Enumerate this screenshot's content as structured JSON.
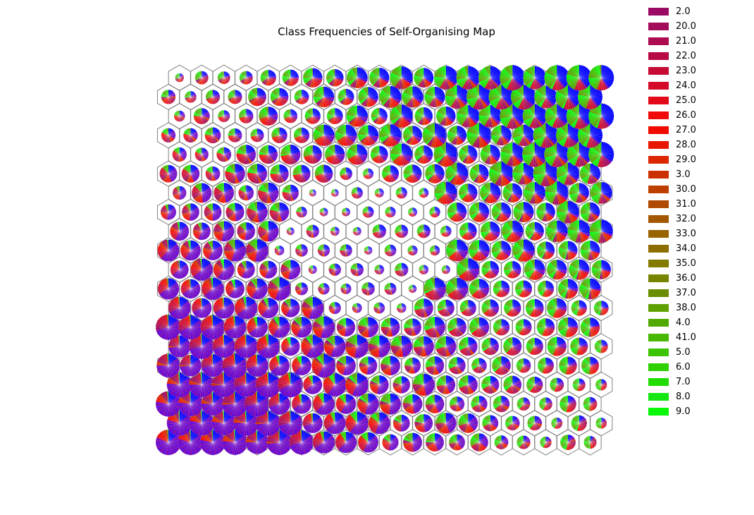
{
  "title": "Class Frequencies of Self-Organising Map",
  "chart_data": {
    "type": "pie-hexgrid",
    "title": "Class Frequencies of Self-Organising Map",
    "grid": "off",
    "legend_placement": "upper-right",
    "map_shape": {
      "rows": 20,
      "cols": 20,
      "cell_shape": "hexagon"
    },
    "classes": [
      {
        "label": "2.0",
        "color": "#9a0a64"
      },
      {
        "label": "20.0",
        "color": "#a30a5a"
      },
      {
        "label": "21.0",
        "color": "#ad0a50"
      },
      {
        "label": "22.0",
        "color": "#b80a45"
      },
      {
        "label": "23.0",
        "color": "#c60a36"
      },
      {
        "label": "24.0",
        "color": "#d40a28"
      },
      {
        "label": "25.0",
        "color": "#e20a18"
      },
      {
        "label": "26.0",
        "color": "#f00a0a"
      },
      {
        "label": "27.0",
        "color": "#f00a00"
      },
      {
        "label": "28.0",
        "color": "#e81800"
      },
      {
        "label": "29.0",
        "color": "#dc2600"
      },
      {
        "label": "3.0",
        "color": "#cc3000"
      },
      {
        "label": "30.0",
        "color": "#be4000"
      },
      {
        "label": "31.0",
        "color": "#b04a00"
      },
      {
        "label": "32.0",
        "color": "#a35800"
      },
      {
        "label": "33.0",
        "color": "#986400"
      },
      {
        "label": "34.0",
        "color": "#8c6e00"
      },
      {
        "label": "35.0",
        "color": "#837a00"
      },
      {
        "label": "36.0",
        "color": "#768400"
      },
      {
        "label": "37.0",
        "color": "#6a8e00"
      },
      {
        "label": "38.0",
        "color": "#5ea000"
      },
      {
        "label": "4.0",
        "color": "#52aa00"
      },
      {
        "label": "41.0",
        "color": "#48b800"
      },
      {
        "label": "5.0",
        "color": "#3cc400"
      },
      {
        "label": "6.0",
        "color": "#2ed000"
      },
      {
        "label": "7.0",
        "color": "#20dc00"
      },
      {
        "label": "8.0",
        "color": "#14e810"
      },
      {
        "label": "9.0",
        "color": "#08f808"
      }
    ],
    "extra_pie_colors": {
      "blue": "#0000ff",
      "purple": "#6a00c8"
    }
  }
}
